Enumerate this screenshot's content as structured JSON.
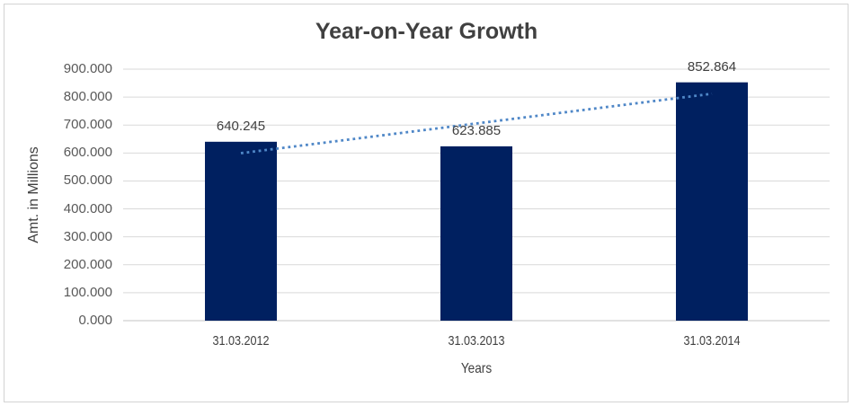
{
  "window": {
    "background": "#ffffff",
    "border_color": "#d3d3d3"
  },
  "chart_data": {
    "type": "bar",
    "title": "Year-on-Year Growth",
    "xlabel": "Years",
    "ylabel": "Amt. in Millions",
    "categories": [
      "31.03.2012",
      "31.03.2013",
      "31.03.2014"
    ],
    "series": [
      {
        "name": "Amt. in Millions",
        "values": [
          640.245,
          623.885,
          852.864
        ]
      }
    ],
    "value_labels": [
      "640.245",
      "623.885",
      "852.864"
    ],
    "ylim": [
      0,
      900
    ],
    "ytick_interval": 100,
    "ytick_labels": [
      "0.000",
      "100.000",
      "200.000",
      "300.000",
      "400.000",
      "500.000",
      "600.000",
      "700.000",
      "800.000",
      "900.000"
    ],
    "grid": true,
    "legend": "none",
    "trendline": {
      "type": "linear",
      "style": "dotted",
      "color": "#4f87c7"
    },
    "colors": {
      "bar": "#002060",
      "gridline": "#d9d9d9",
      "axis_line": "#c3c3c3",
      "title_text": "#404040",
      "tick_text": "#595959",
      "label_text": "#404040"
    }
  }
}
